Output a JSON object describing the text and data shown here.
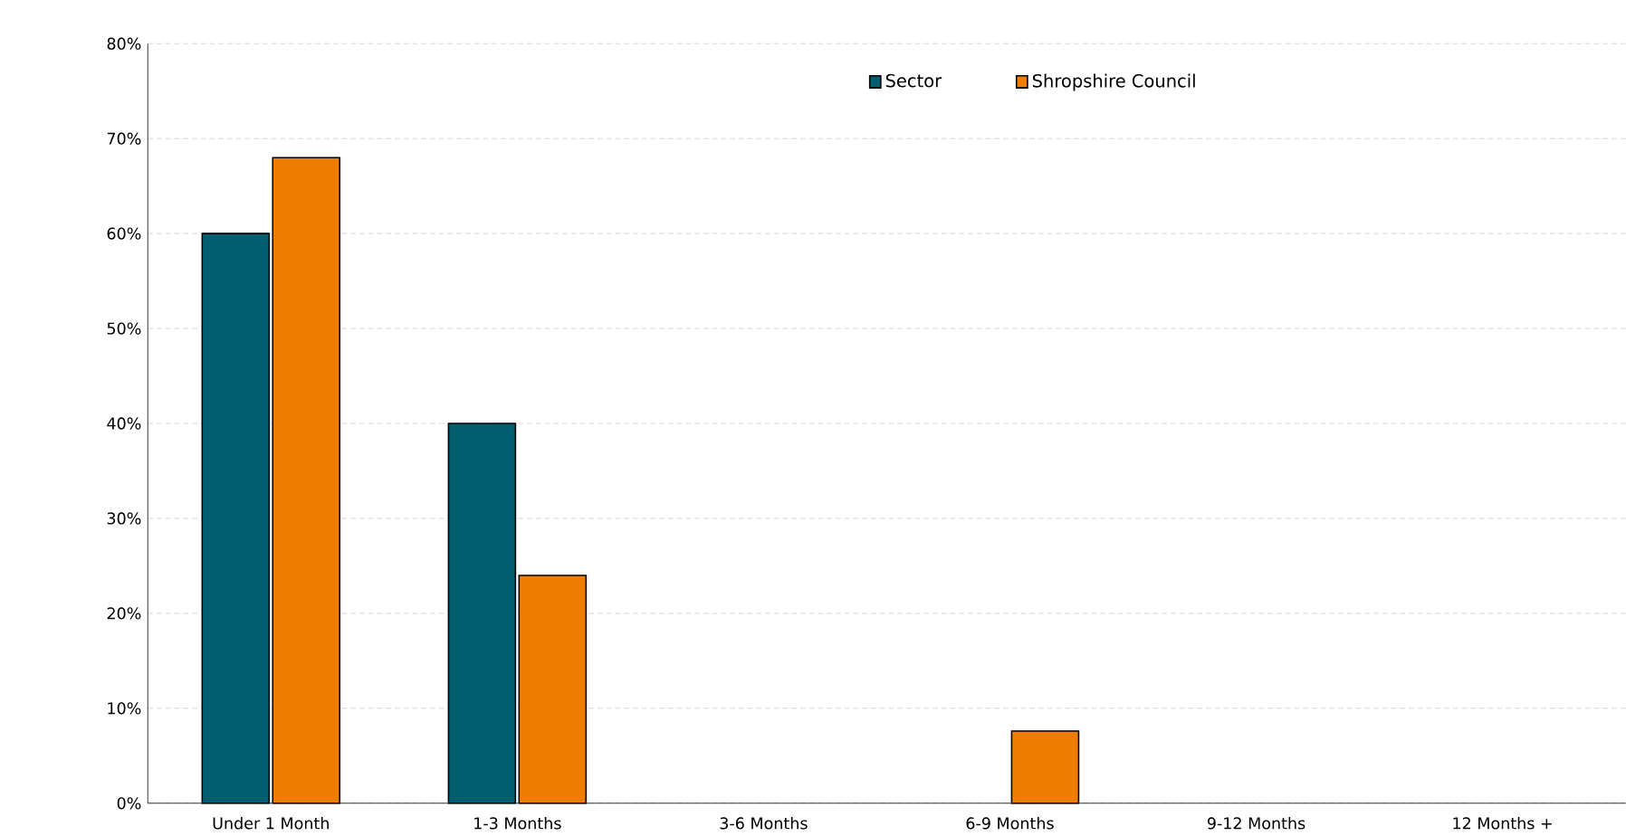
{
  "chart_data": {
    "type": "bar",
    "categories": [
      "Under 1 Month",
      "1-3 Months",
      "3-6 Months",
      "6-9 Months",
      "9-12 Months",
      "12 Months +"
    ],
    "series": [
      {
        "name": "Sector",
        "color": "#005f6e",
        "values": [
          60,
          40,
          null,
          null,
          null,
          null
        ]
      },
      {
        "name": "Shropshire Council",
        "color": "#ef7d00",
        "values": [
          68,
          24,
          null,
          7.6,
          null,
          null
        ]
      }
    ],
    "ylim": [
      0,
      80
    ],
    "yticks": [
      {
        "value": 0,
        "label": "0%"
      },
      {
        "value": 10,
        "label": "10%"
      },
      {
        "value": 20,
        "label": "20%"
      },
      {
        "value": 30,
        "label": "30%"
      },
      {
        "value": 40,
        "label": "40%"
      },
      {
        "value": 50,
        "label": "50%"
      },
      {
        "value": 60,
        "label": "60%"
      },
      {
        "value": 70,
        "label": "70%"
      },
      {
        "value": 80,
        "label": "80%"
      }
    ],
    "grid": "y",
    "legend": "top"
  }
}
